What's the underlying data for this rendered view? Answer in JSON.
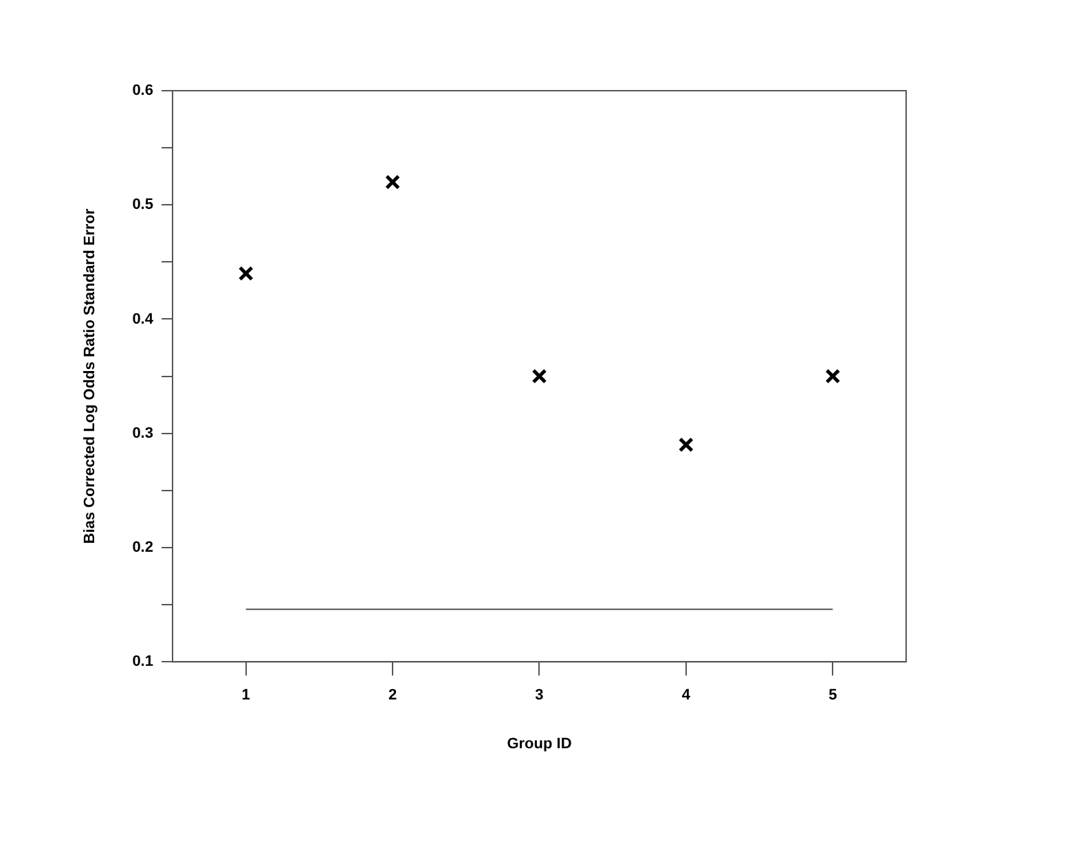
{
  "chart_data": {
    "type": "scatter",
    "xlabel": "Group ID",
    "ylabel": "Bias Corrected Log Odds Ratio Standard Error",
    "x": [
      1,
      2,
      3,
      4,
      5
    ],
    "series": [
      {
        "color": "#000000",
        "values": [
          0.44,
          0.52,
          0.35,
          0.29,
          0.35
        ],
        "marker": "cross"
      },
      {
        "type": "line",
        "x": [
          1,
          5
        ],
        "color": "#555555",
        "values": [
          0.146,
          0.146
        ],
        "marker": "none",
        "line_style": "solid"
      }
    ],
    "xlim": [
      0.5,
      5.5
    ],
    "xticks": [
      1,
      2,
      3,
      4,
      5
    ],
    "ylim": [
      0.1,
      0.6
    ],
    "yticks": [
      0.1,
      {
        "value": 0.15,
        "label": null
      },
      0.2,
      {
        "value": 0.25,
        "label": null
      },
      0.3,
      {
        "value": 0.35,
        "label": null
      },
      0.4,
      {
        "value": 0.45,
        "label": null
      },
      0.5,
      {
        "value": 0.55,
        "label": null
      },
      0.6
    ],
    "grid": false,
    "legend": false
  }
}
